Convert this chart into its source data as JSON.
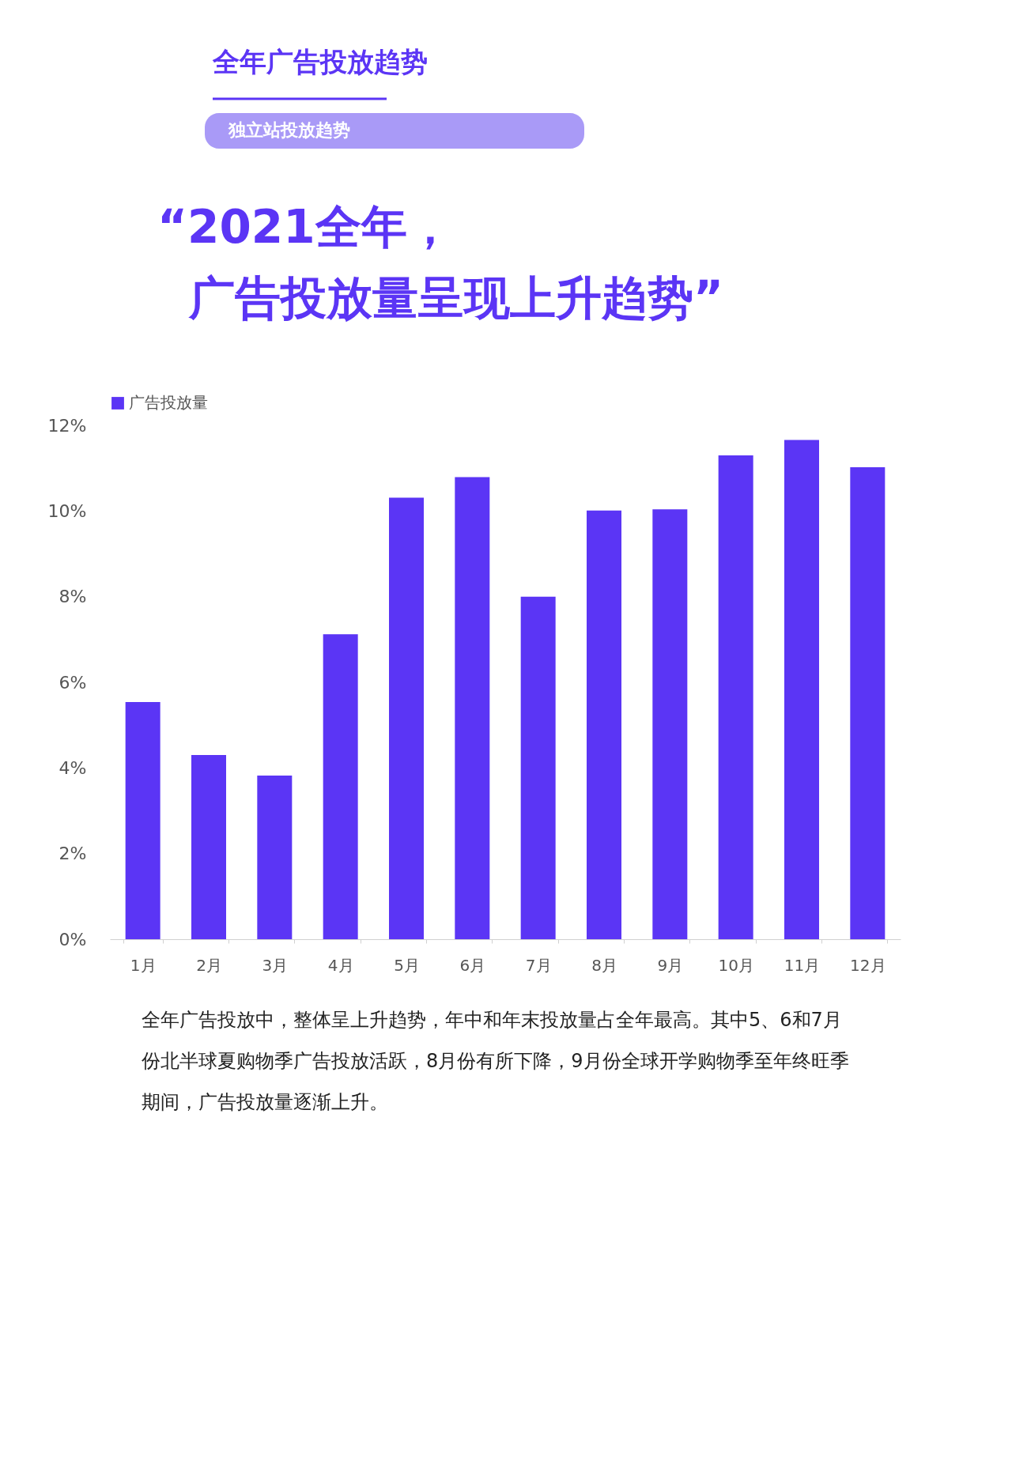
{
  "chart_data": {
    "type": "bar",
    "title": "全年广告投放趋势",
    "subtitle": "独立站投放趋势",
    "annotations": [
      "“2021全年，",
      "广告投放量呈现上升趋势”",
      "全年广告投放中，整体呈上升趋势，年中和年末投放量占全年最高。其中5、6和7月份北半球夏购物季广告投放活跃，8月份有所下降，9月份全球开学购物季至年终旺季期间，广告投放量逐渐上升。"
    ],
    "categories": [
      "1月",
      "2月",
      "3月",
      "4月",
      "5月",
      "6月",
      "7月",
      "8月",
      "9月",
      "10月",
      "11月",
      "12月"
    ],
    "series": [
      {
        "name": "广告投放量",
        "color": "#5b35f5",
        "values": [
          5.54,
          4.3,
          3.82,
          7.12,
          10.31,
          10.79,
          8.0,
          10.01,
          10.04,
          11.3,
          11.66,
          11.02
        ]
      }
    ],
    "ylim": [
      0,
      12
    ],
    "yticks": [
      {
        "value": 0,
        "label": "0%"
      },
      {
        "value": 2,
        "label": "2%"
      },
      {
        "value": 4,
        "label": "4%"
      },
      {
        "value": 6,
        "label": "6%"
      },
      {
        "value": 8,
        "label": "8%"
      },
      {
        "value": 10,
        "label": "10%"
      },
      {
        "value": 12,
        "label": "12%"
      }
    ],
    "grid": false,
    "legend": "top"
  }
}
